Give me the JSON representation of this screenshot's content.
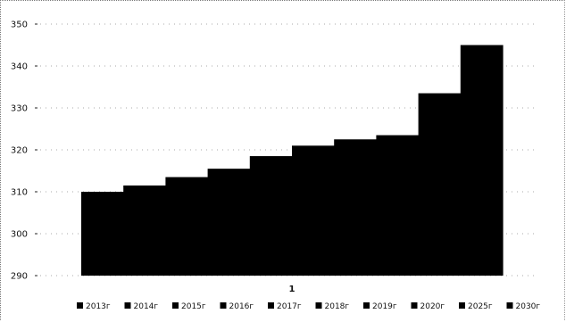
{
  "chart_data": {
    "type": "bar",
    "categories": [
      "1"
    ],
    "series": [
      {
        "name": "2013г",
        "values": [
          310
        ]
      },
      {
        "name": "2014г",
        "values": [
          311.5
        ]
      },
      {
        "name": "2015г",
        "values": [
          313.5
        ]
      },
      {
        "name": "2016г",
        "values": [
          315.5
        ]
      },
      {
        "name": "2017г",
        "values": [
          318.5
        ]
      },
      {
        "name": "2018г",
        "values": [
          321
        ]
      },
      {
        "name": "2019г",
        "values": [
          322.5
        ]
      },
      {
        "name": "2020г",
        "values": [
          323.5
        ]
      },
      {
        "name": "2025г",
        "values": [
          333.5
        ]
      },
      {
        "name": "2030г",
        "values": [
          345
        ]
      }
    ],
    "yticks": [
      290,
      300,
      310,
      320,
      330,
      340,
      350
    ],
    "ylim": [
      290,
      350
    ],
    "title": "",
    "xlabel": "",
    "ylabel": "",
    "grid": true,
    "legend_position": "bottom",
    "bar_color": "#000000"
  }
}
